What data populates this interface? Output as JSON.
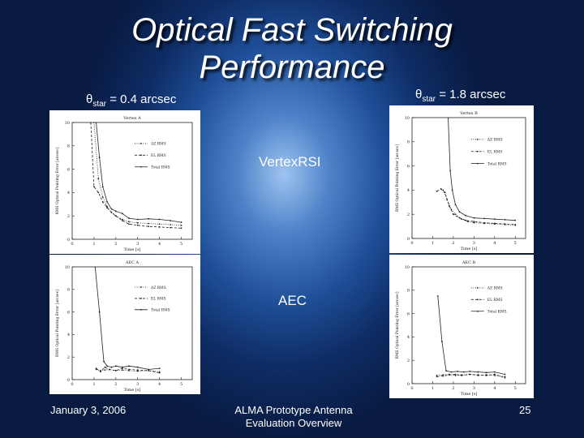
{
  "slide": {
    "title_line1": "Optical Fast Switching",
    "title_line2": "Performance",
    "theta_left": {
      "symbol": "θ",
      "sub": "star",
      "value": "= 0.4 arcsec"
    },
    "theta_right": {
      "symbol": "θ",
      "sub": "star",
      "value": "= 1.8 arcsec"
    },
    "row_label_vertex": "VertexRSI",
    "row_label_aec": "AEC",
    "footer_date": "January 3, 2006",
    "footer_center_line1": "ALMA Prototype Antenna",
    "footer_center_line2": "Evaluation Overview",
    "footer_page": "25"
  },
  "colors": {
    "background_center": "#9fc4f0",
    "background_edge": "#081a40",
    "text": "#ffffff"
  },
  "chart_data": [
    {
      "id": "vertex-a",
      "type": "line",
      "title": "Vertex A",
      "xlabel": "Time [s]",
      "ylabel": "RMS Optical Pointing Error [arcsec]",
      "xlim": [
        0,
        5.5
      ],
      "ylim": [
        0,
        10
      ],
      "xticks": [
        0,
        1,
        2,
        3,
        4,
        5
      ],
      "yticks": [
        0,
        2,
        4,
        6,
        8,
        10
      ],
      "legend_position": "top-right",
      "series": [
        {
          "name": "AZ RMS",
          "style": "dotted",
          "x": [
            1.0,
            1.2,
            1.4,
            1.6,
            1.8,
            2.0,
            2.3,
            2.6,
            3.0,
            3.5,
            4.0,
            4.5,
            5.0
          ],
          "y": [
            10,
            5.2,
            3.6,
            2.8,
            2.3,
            2.0,
            1.7,
            1.5,
            1.4,
            1.35,
            1.3,
            1.25,
            1.2
          ]
        },
        {
          "name": "EL RMS",
          "style": "dashed",
          "x": [
            0.85,
            1.0,
            1.2,
            1.4,
            1.6,
            1.8,
            2.0,
            2.3,
            2.6,
            3.0,
            3.5,
            4.0,
            4.5,
            5.0
          ],
          "y": [
            10,
            4.5,
            4.0,
            3.2,
            2.7,
            2.3,
            2.0,
            1.6,
            1.3,
            1.2,
            1.1,
            1.05,
            1.0,
            0.95
          ]
        },
        {
          "name": "Total RMS",
          "style": "solid",
          "x": [
            1.1,
            1.25,
            1.4,
            1.6,
            1.8,
            2.0,
            2.3,
            2.6,
            3.0,
            3.5,
            4.0,
            4.5,
            5.0
          ],
          "y": [
            10,
            7.0,
            4.5,
            3.2,
            2.6,
            2.4,
            2.2,
            1.8,
            1.7,
            1.75,
            1.7,
            1.6,
            1.45
          ]
        }
      ]
    },
    {
      "id": "vertex-b",
      "type": "line",
      "title": "Vertex B",
      "xlabel": "Time [s]",
      "ylabel": "RMS Optical Pointing Error [arcsec]",
      "xlim": [
        0,
        5.5
      ],
      "ylim": [
        0,
        10
      ],
      "xticks": [
        0,
        1,
        2,
        3,
        4,
        5
      ],
      "yticks": [
        0,
        2,
        4,
        6,
        8,
        10
      ],
      "legend_position": "top-right",
      "series": [
        {
          "name": "AZ RMS",
          "style": "dotted",
          "x": [
            1.5,
            1.7,
            1.9,
            2.1,
            2.4,
            2.7,
            3.0,
            3.5,
            4.0,
            4.5,
            5.0
          ],
          "y": [
            4.0,
            3.2,
            2.4,
            2.0,
            1.6,
            1.4,
            1.3,
            1.25,
            1.2,
            1.15,
            1.1
          ]
        },
        {
          "name": "EL RMS",
          "style": "dashed",
          "x": [
            1.2,
            1.4,
            1.6,
            1.8,
            2.0,
            2.3,
            2.6,
            3.0,
            3.5,
            4.0,
            4.5,
            5.0
          ],
          "y": [
            3.9,
            4.1,
            3.8,
            2.7,
            2.0,
            1.7,
            1.5,
            1.4,
            1.3,
            1.25,
            1.2,
            1.15
          ]
        },
        {
          "name": "Total RMS",
          "style": "solid",
          "x": [
            1.75,
            1.85,
            1.95,
            2.1,
            2.3,
            2.6,
            3.0,
            3.5,
            4.0,
            4.5,
            5.0
          ],
          "y": [
            10,
            5.6,
            4.0,
            2.8,
            2.2,
            1.9,
            1.7,
            1.65,
            1.6,
            1.55,
            1.5
          ]
        }
      ]
    },
    {
      "id": "aec-a",
      "type": "line",
      "title": "AEC A",
      "xlabel": "Time [s]",
      "ylabel": "RMS Optical Pointing Error [arcsec]",
      "xlim": [
        0,
        5.5
      ],
      "ylim": [
        0,
        10
      ],
      "xticks": [
        0,
        1,
        2,
        3,
        4,
        5
      ],
      "yticks": [
        0,
        2,
        4,
        6,
        8,
        10
      ],
      "legend_position": "top-right",
      "series": [
        {
          "name": "AZ RMS",
          "style": "dotted",
          "x": [
            1.1,
            1.3,
            1.5,
            1.7,
            2.0,
            2.3,
            2.6,
            3.0,
            3.5,
            4.0
          ],
          "y": [
            0.9,
            0.8,
            0.85,
            0.9,
            0.8,
            0.85,
            0.8,
            0.75,
            0.8,
            0.7
          ]
        },
        {
          "name": "EL RMS",
          "style": "dashed",
          "x": [
            1.1,
            1.3,
            1.5,
            1.7,
            2.0,
            2.3,
            2.6,
            3.0,
            3.5,
            4.0
          ],
          "y": [
            1.0,
            0.7,
            1.1,
            0.9,
            0.8,
            1.0,
            0.9,
            0.85,
            0.8,
            0.6
          ]
        },
        {
          "name": "Total RMS",
          "style": "solid",
          "x": [
            1.05,
            1.25,
            1.45,
            1.6,
            1.8,
            2.0,
            2.3,
            2.6,
            3.0,
            3.5,
            4.0
          ],
          "y": [
            10,
            6.0,
            1.6,
            1.2,
            1.1,
            1.2,
            1.1,
            1.2,
            1.1,
            0.9,
            1.0
          ]
        }
      ]
    },
    {
      "id": "aec-b",
      "type": "line",
      "title": "AEC B",
      "xlabel": "Time [s]",
      "ylabel": "RMS Optical Pointing Error [arcsec]",
      "xlim": [
        0,
        5.5
      ],
      "ylim": [
        0,
        10
      ],
      "xticks": [
        0,
        1,
        2,
        3,
        4,
        5
      ],
      "yticks": [
        0,
        2,
        4,
        6,
        8,
        10
      ],
      "legend_position": "top-right",
      "series": [
        {
          "name": "AZ RMS",
          "style": "dotted",
          "x": [
            1.2,
            1.5,
            1.8,
            2.1,
            2.4,
            2.8,
            3.2,
            3.6,
            4.0,
            4.5
          ],
          "y": [
            0.7,
            0.75,
            0.8,
            0.7,
            0.75,
            0.8,
            0.7,
            0.75,
            0.7,
            0.6
          ]
        },
        {
          "name": "EL RMS",
          "style": "dashed",
          "x": [
            1.2,
            1.5,
            1.8,
            2.1,
            2.4,
            2.8,
            3.2,
            3.6,
            4.0,
            4.5
          ],
          "y": [
            0.6,
            0.65,
            0.75,
            0.8,
            0.7,
            0.8,
            0.75,
            0.7,
            0.8,
            0.5
          ]
        },
        {
          "name": "Total RMS",
          "style": "solid",
          "x": [
            1.25,
            1.45,
            1.65,
            1.9,
            2.2,
            2.5,
            2.8,
            3.2,
            3.6,
            4.0,
            4.5
          ],
          "y": [
            7.5,
            3.6,
            1.1,
            1.0,
            1.05,
            1.0,
            1.05,
            1.0,
            0.95,
            1.0,
            0.8
          ]
        }
      ]
    }
  ]
}
